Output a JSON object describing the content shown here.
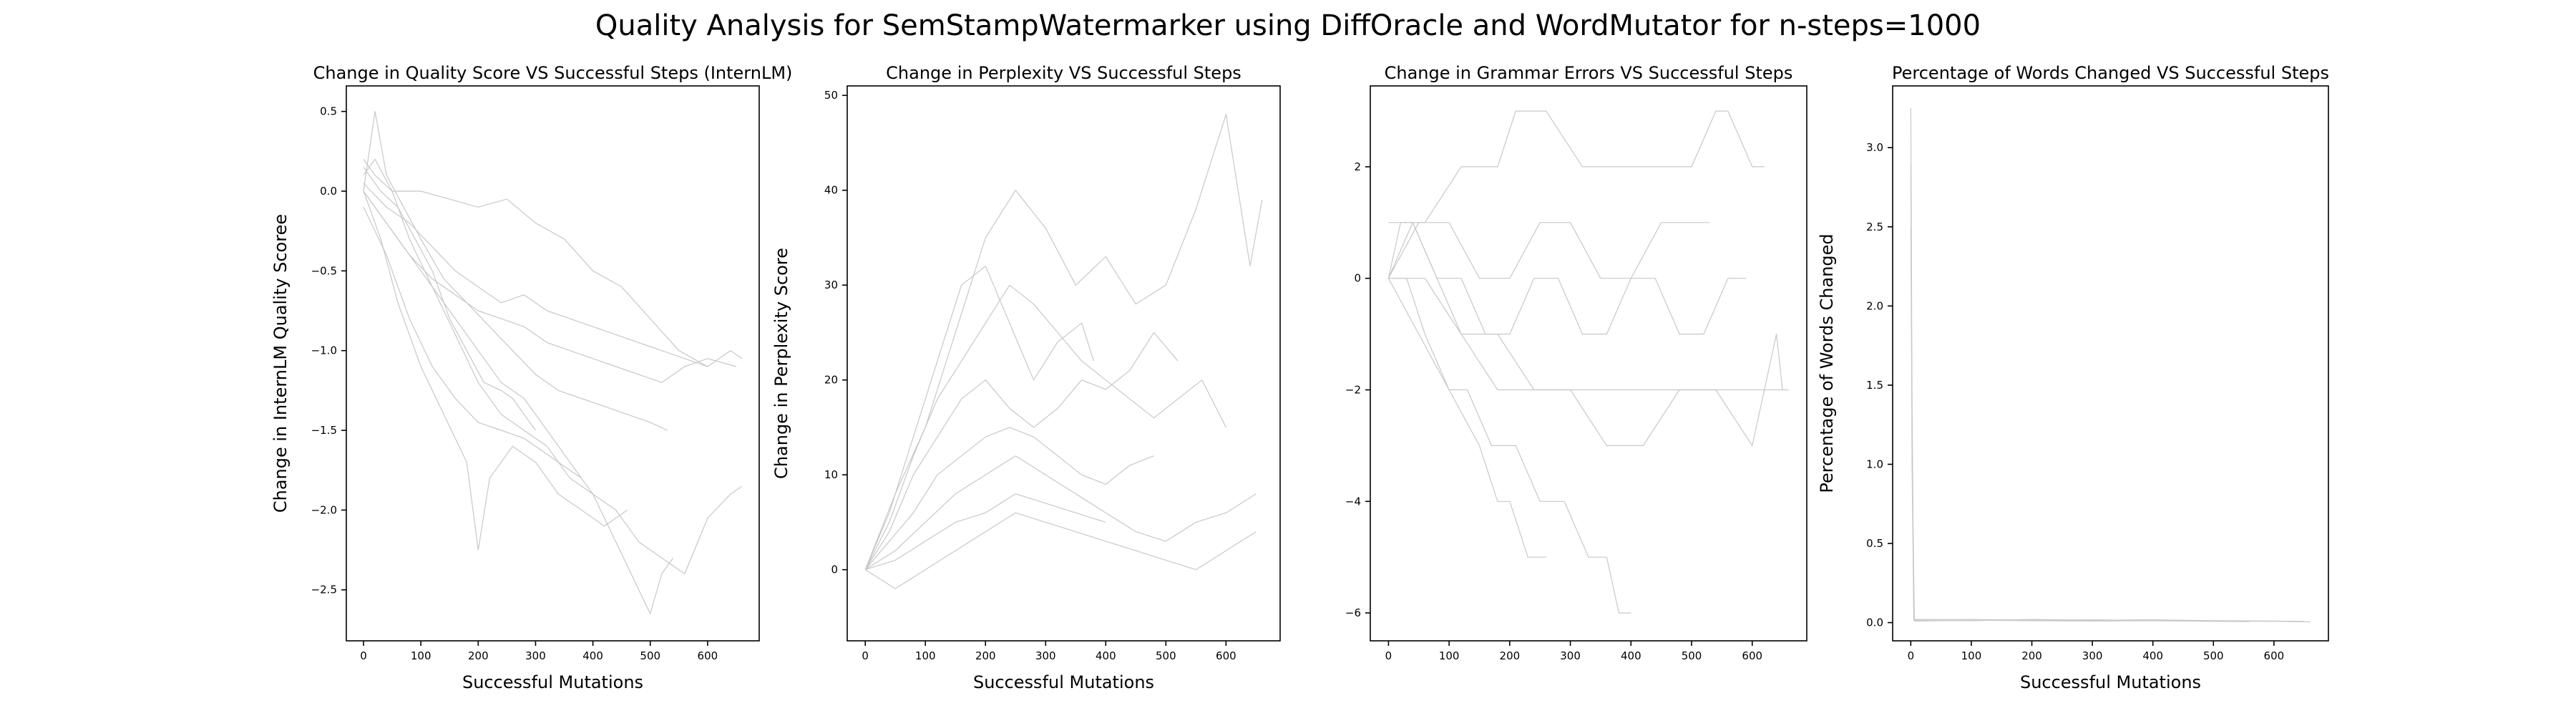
{
  "figure": {
    "title": "Quality Analysis for SemStampWatermarker using DiffOracle and WordMutator for n-steps=1000",
    "line_color": "#c8c8c8"
  },
  "chart_data": [
    {
      "type": "line",
      "title": "Change in Quality Score VS Successful Steps (InternLM)",
      "xlabel": "Successful Mutations",
      "ylabel": "Change in InternLM Quality Scoree",
      "xlim": [
        -30,
        690
      ],
      "ylim": [
        -2.82,
        0.66
      ],
      "xticks": [
        0,
        100,
        200,
        300,
        400,
        500,
        600
      ],
      "yticks": [
        -2.5,
        -2.0,
        -1.5,
        -1.0,
        -0.5,
        0.0,
        0.5
      ],
      "ytick_labels": [
        "−2.5",
        "−2.0",
        "−1.5",
        "−1.0",
        "−0.5",
        "0.0",
        "0.5"
      ],
      "grid": false,
      "series": [
        {
          "x": [
            0,
            20,
            40,
            70,
            100,
            140,
            180,
            220,
            260,
            300,
            340,
            380,
            420,
            460,
            500,
            530
          ],
          "y": [
            0.0,
            0.5,
            0.1,
            -0.1,
            -0.3,
            -0.55,
            -0.7,
            -0.85,
            -1.0,
            -1.15,
            -1.25,
            -1.3,
            -1.35,
            -1.4,
            -1.45,
            -1.5
          ]
        },
        {
          "x": [
            0,
            20,
            50,
            80,
            120,
            160,
            200,
            240,
            280,
            320,
            360,
            400,
            440,
            480,
            520,
            560,
            600,
            640,
            660
          ],
          "y": [
            0.1,
            0.2,
            0.0,
            -0.3,
            -0.6,
            -0.9,
            -1.2,
            -1.4,
            -1.5,
            -1.6,
            -1.8,
            -1.9,
            -2.0,
            -2.2,
            -2.3,
            -2.4,
            -2.05,
            -1.9,
            -1.85
          ]
        },
        {
          "x": [
            0,
            30,
            60,
            100,
            140,
            180,
            200,
            220,
            260,
            300,
            340,
            380,
            420,
            460
          ],
          "y": [
            0.0,
            -0.3,
            -0.7,
            -1.1,
            -1.4,
            -1.7,
            -2.25,
            -1.8,
            -1.6,
            -1.7,
            -1.9,
            -2.0,
            -2.1,
            -2.0
          ]
        },
        {
          "x": [
            0,
            40,
            80,
            120,
            160,
            200,
            240,
            280,
            320,
            360,
            400,
            440,
            480,
            500,
            520,
            540
          ],
          "y": [
            0.0,
            -0.2,
            -0.4,
            -0.6,
            -0.8,
            -1.0,
            -1.2,
            -1.3,
            -1.5,
            -1.7,
            -1.9,
            -2.2,
            -2.5,
            -2.65,
            -2.4,
            -2.3
          ]
        },
        {
          "x": [
            0,
            40,
            80,
            120,
            160,
            200,
            240,
            280,
            320,
            360,
            400,
            440,
            480,
            520,
            560,
            600,
            640,
            660
          ],
          "y": [
            0.05,
            -0.1,
            -0.2,
            -0.35,
            -0.5,
            -0.6,
            -0.7,
            -0.65,
            -0.75,
            -0.8,
            -0.85,
            -0.9,
            -0.95,
            -1.0,
            -1.05,
            -1.1,
            -1.0,
            -1.05
          ]
        },
        {
          "x": [
            0,
            20,
            50,
            100,
            150,
            200,
            250,
            300,
            350,
            400,
            450,
            500,
            550,
            600
          ],
          "y": [
            0.2,
            0.1,
            0.0,
            0.0,
            -0.05,
            -0.1,
            -0.05,
            -0.2,
            -0.3,
            -0.5,
            -0.6,
            -0.8,
            -1.0,
            -1.1
          ]
        },
        {
          "x": [
            0,
            40,
            80,
            120,
            160,
            200,
            240,
            280,
            320,
            360,
            380
          ],
          "y": [
            -0.1,
            -0.4,
            -0.8,
            -1.1,
            -1.3,
            -1.45,
            -1.5,
            -1.55,
            -1.65,
            -1.75,
            -1.8
          ]
        },
        {
          "x": [
            0,
            30,
            60,
            90,
            120,
            150,
            180,
            210,
            240,
            260,
            280,
            300
          ],
          "y": [
            0.15,
            0.0,
            -0.1,
            -0.3,
            -0.5,
            -0.8,
            -1.0,
            -1.2,
            -1.25,
            -1.3,
            -1.4,
            -1.5
          ]
        },
        {
          "x": [
            0,
            40,
            80,
            120,
            160,
            200,
            240,
            280,
            320,
            360,
            400,
            440,
            480,
            520,
            560,
            600,
            650
          ],
          "y": [
            0.0,
            -0.2,
            -0.4,
            -0.55,
            -0.65,
            -0.75,
            -0.8,
            -0.85,
            -0.95,
            -1.0,
            -1.05,
            -1.1,
            -1.15,
            -1.2,
            -1.1,
            -1.05,
            -1.1
          ]
        }
      ]
    },
    {
      "type": "line",
      "title": "Change in Perplexity VS Successful Steps",
      "xlabel": "Successful Mutations",
      "ylabel": "Change in Perplexity Score",
      "xlim": [
        -30,
        690
      ],
      "ylim": [
        -7.5,
        51
      ],
      "xticks": [
        0,
        100,
        200,
        300,
        400,
        500,
        600
      ],
      "yticks": [
        0,
        10,
        20,
        30,
        40,
        50
      ],
      "ytick_labels": [
        "0",
        "10",
        "20",
        "30",
        "40",
        "50"
      ],
      "grid": false,
      "series": [
        {
          "x": [
            0,
            50,
            100,
            150,
            200,
            250,
            300,
            350,
            400,
            450,
            500,
            550,
            600,
            640,
            660
          ],
          "y": [
            0,
            8,
            15,
            25,
            35,
            40,
            36,
            30,
            33,
            28,
            30,
            38,
            48,
            32,
            39
          ]
        },
        {
          "x": [
            0,
            40,
            80,
            120,
            160,
            200,
            240,
            280,
            320,
            360,
            400,
            440,
            480,
            520,
            560,
            600
          ],
          "y": [
            0,
            5,
            12,
            18,
            22,
            26,
            30,
            28,
            25,
            22,
            20,
            18,
            16,
            18,
            20,
            15
          ]
        },
        {
          "x": [
            0,
            40,
            80,
            120,
            160,
            200,
            240,
            280,
            320,
            360,
            400,
            440,
            480,
            520
          ],
          "y": [
            0,
            4,
            10,
            14,
            18,
            20,
            17,
            15,
            17,
            20,
            19,
            21,
            25,
            22
          ]
        },
        {
          "x": [
            0,
            50,
            100,
            150,
            200,
            250,
            300,
            350,
            400,
            450,
            500,
            550,
            600,
            650
          ],
          "y": [
            0,
            2,
            5,
            8,
            10,
            12,
            10,
            8,
            6,
            4,
            3,
            5,
            6,
            8
          ]
        },
        {
          "x": [
            0,
            50,
            100,
            150,
            200,
            250,
            300,
            350,
            400,
            450,
            500,
            550,
            600,
            650
          ],
          "y": [
            0,
            -2,
            0,
            2,
            4,
            6,
            5,
            4,
            3,
            2,
            1,
            0,
            2,
            4
          ]
        },
        {
          "x": [
            0,
            40,
            80,
            120,
            160,
            200,
            240,
            280,
            320,
            360,
            400,
            440,
            480
          ],
          "y": [
            0,
            3,
            6,
            10,
            12,
            14,
            15,
            14,
            12,
            10,
            9,
            11,
            12
          ]
        },
        {
          "x": [
            0,
            40,
            80,
            120,
            160,
            200,
            240,
            280,
            320,
            360,
            380
          ],
          "y": [
            0,
            6,
            14,
            22,
            30,
            32,
            26,
            20,
            24,
            26,
            22
          ]
        },
        {
          "x": [
            0,
            50,
            100,
            150,
            200,
            250,
            300,
            350,
            400
          ],
          "y": [
            0,
            1,
            3,
            5,
            6,
            8,
            7,
            6,
            5
          ]
        }
      ]
    },
    {
      "type": "line",
      "title": "Change in Grammar Errors VS Successful Steps",
      "xlabel": "",
      "ylabel": "",
      "xlim": [
        -30,
        690
      ],
      "ylim": [
        -6.5,
        3.45
      ],
      "xticks": [
        0,
        100,
        200,
        300,
        400,
        500,
        600
      ],
      "yticks": [
        -6,
        -4,
        -2,
        0,
        2
      ],
      "ytick_labels": [
        "−6",
        "−4",
        "−2",
        "0",
        "2"
      ],
      "grid": false,
      "series": [
        {
          "x": [
            0,
            20,
            60,
            120,
            180,
            210,
            260,
            320,
            380,
            440,
            500,
            540,
            560,
            600,
            620
          ],
          "y": [
            0,
            1,
            1,
            2,
            2,
            3,
            3,
            2,
            2,
            2,
            2,
            3,
            3,
            2,
            2
          ]
        },
        {
          "x": [
            0,
            40,
            80,
            120,
            180,
            230,
            270,
            320,
            400,
            480,
            560,
            640,
            660
          ],
          "y": [
            0,
            1,
            0,
            -1,
            -2,
            -2,
            -2,
            -2,
            -2,
            -2,
            -2,
            -2,
            -2
          ]
        },
        {
          "x": [
            0,
            30,
            60,
            100,
            130,
            170,
            210,
            250,
            290,
            330,
            360,
            380,
            400
          ],
          "y": [
            0,
            0,
            -1,
            -2,
            -2,
            -3,
            -3,
            -4,
            -4,
            -5,
            -5,
            -6,
            -6
          ]
        },
        {
          "x": [
            0,
            50,
            100,
            150,
            200,
            250,
            300,
            350,
            400,
            450,
            500,
            530
          ],
          "y": [
            0,
            1,
            1,
            0,
            0,
            1,
            1,
            0,
            0,
            1,
            1,
            1
          ]
        },
        {
          "x": [
            0,
            40,
            80,
            120,
            160,
            200,
            240,
            280,
            320,
            360,
            400,
            440,
            480,
            520,
            560,
            590
          ],
          "y": [
            1,
            1,
            0,
            0,
            -1,
            -1,
            0,
            0,
            -1,
            -1,
            0,
            0,
            -1,
            -1,
            0,
            0
          ]
        },
        {
          "x": [
            0,
            50,
            100,
            150,
            180,
            200,
            230,
            260
          ],
          "y": [
            0,
            -1,
            -2,
            -3,
            -4,
            -4,
            -5,
            -5
          ]
        },
        {
          "x": [
            0,
            60,
            120,
            180,
            240,
            300,
            360,
            420,
            480,
            540,
            600,
            640,
            650
          ],
          "y": [
            0,
            0,
            -1,
            -1,
            -2,
            -2,
            -3,
            -3,
            -2,
            -2,
            -3,
            -1,
            -2
          ]
        }
      ]
    },
    {
      "type": "line",
      "title": "Percentage of Words Changed VS Successful Steps",
      "xlabel": "Successful Mutations",
      "ylabel": "Percentage of Words Changed",
      "xlim": [
        -30,
        690
      ],
      "ylim": [
        -0.115,
        3.39
      ],
      "xticks": [
        0,
        100,
        200,
        300,
        400,
        500,
        600
      ],
      "yticks": [
        0.0,
        0.5,
        1.0,
        1.5,
        2.0,
        2.5,
        3.0
      ],
      "ytick_labels": [
        "0.0",
        "0.5",
        "1.0",
        "1.5",
        "2.0",
        "2.5",
        "3.0"
      ],
      "grid": false,
      "series": [
        {
          "x": [
            0,
            2,
            5,
            100,
            200,
            300,
            400,
            500,
            600,
            660
          ],
          "y": [
            3.25,
            1.4,
            0.02,
            0.02,
            0.015,
            0.018,
            0.012,
            0.01,
            0.008,
            0.005
          ]
        },
        {
          "x": [
            0,
            2,
            5,
            100,
            200,
            300,
            400,
            500,
            600,
            650
          ],
          "y": [
            2.9,
            1.0,
            0.015,
            0.012,
            0.02,
            0.015,
            0.018,
            0.012,
            0.01,
            0.008
          ]
        },
        {
          "x": [
            0,
            3,
            6,
            100,
            200,
            300,
            400,
            500,
            560
          ],
          "y": [
            2.5,
            0.8,
            0.01,
            0.015,
            0.012,
            0.01,
            0.012,
            0.008,
            0.006
          ]
        }
      ]
    }
  ]
}
